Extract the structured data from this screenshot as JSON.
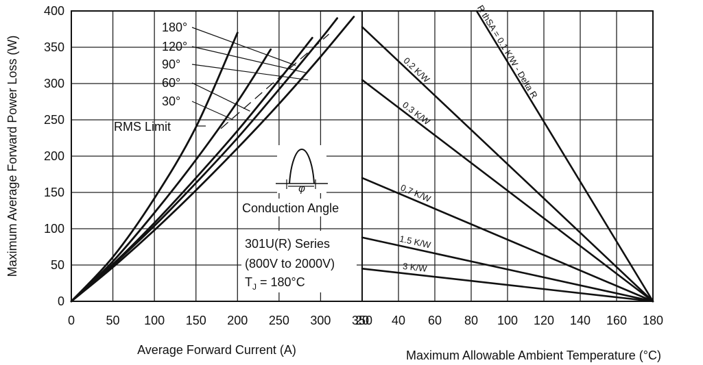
{
  "chart_data": [
    {
      "type": "line",
      "xlabel": "Average Forward Current (A)",
      "ylabel": "Maximum Average Forward Power Loss (W)",
      "xlim": [
        0,
        350
      ],
      "ylim": [
        0,
        400
      ],
      "xticks": [
        "0",
        "50",
        "100",
        "150",
        "200",
        "250",
        "300",
        "350"
      ],
      "yticks": [
        "0",
        "50",
        "100",
        "150",
        "200",
        "250",
        "300",
        "350",
        "400"
      ],
      "grid": true,
      "series": [
        {
          "name": "180°",
          "x": [
            0,
            50,
            100,
            150,
            200,
            250,
            300,
            320
          ],
          "y": [
            0,
            50,
            104,
            163,
            225,
            292,
            361,
            390
          ]
        },
        {
          "name": "120°",
          "x": [
            0,
            50,
            100,
            150,
            200,
            250,
            300,
            340
          ],
          "y": [
            0,
            47,
            98,
            153,
            211,
            272,
            337,
            392
          ]
        },
        {
          "name": "90°",
          "x": [
            0,
            50,
            100,
            150,
            200,
            250,
            290
          ],
          "y": [
            0,
            51,
            108,
            170,
            235,
            305,
            363
          ]
        },
        {
          "name": "60°",
          "x": [
            0,
            50,
            100,
            150,
            200,
            240
          ],
          "y": [
            0,
            55,
            122,
            195,
            275,
            347
          ]
        },
        {
          "name": "30°",
          "x": [
            0,
            50,
            100,
            150,
            200
          ],
          "y": [
            0,
            61,
            142,
            240,
            370
          ]
        }
      ],
      "rms_limit": {
        "x": [
          180,
          310
        ],
        "y": [
          238,
          368
        ]
      },
      "annotations": {
        "rms_label": "RMS Limit",
        "conduction_label": "Conduction Angle",
        "angle_symbol": "φ",
        "series_label": "301U(R) Series",
        "voltage_label": "(800V to 2000V)",
        "tj_prefix": "T",
        "tj_sub": "J",
        "tj_suffix": " = 180°C"
      }
    },
    {
      "type": "line",
      "xlabel": "Maximum Allowable Ambient Temperature (°C)",
      "xlim": [
        20,
        180
      ],
      "ylim": [
        0,
        400
      ],
      "xticks": [
        "20",
        "40",
        "60",
        "80",
        "100",
        "120",
        "140",
        "160",
        "180"
      ],
      "grid": true,
      "series": [
        {
          "name": "R thSA = 0.1 K/W - Delta R",
          "x": [
            83,
            180
          ],
          "y": [
            400,
            0
          ]
        },
        {
          "name": "0.2 K/W",
          "x": [
            20,
            180
          ],
          "y": [
            378,
            0
          ]
        },
        {
          "name": "0.3 K/W",
          "x": [
            20,
            180
          ],
          "y": [
            305,
            0
          ]
        },
        {
          "name": "0.7 K/W",
          "x": [
            20,
            180
          ],
          "y": [
            170,
            0
          ]
        },
        {
          "name": "1.5 K/W",
          "x": [
            20,
            180
          ],
          "y": [
            88,
            0
          ]
        },
        {
          "name": "3 K/W",
          "x": [
            20,
            180
          ],
          "y": [
            45,
            0
          ]
        }
      ]
    }
  ]
}
